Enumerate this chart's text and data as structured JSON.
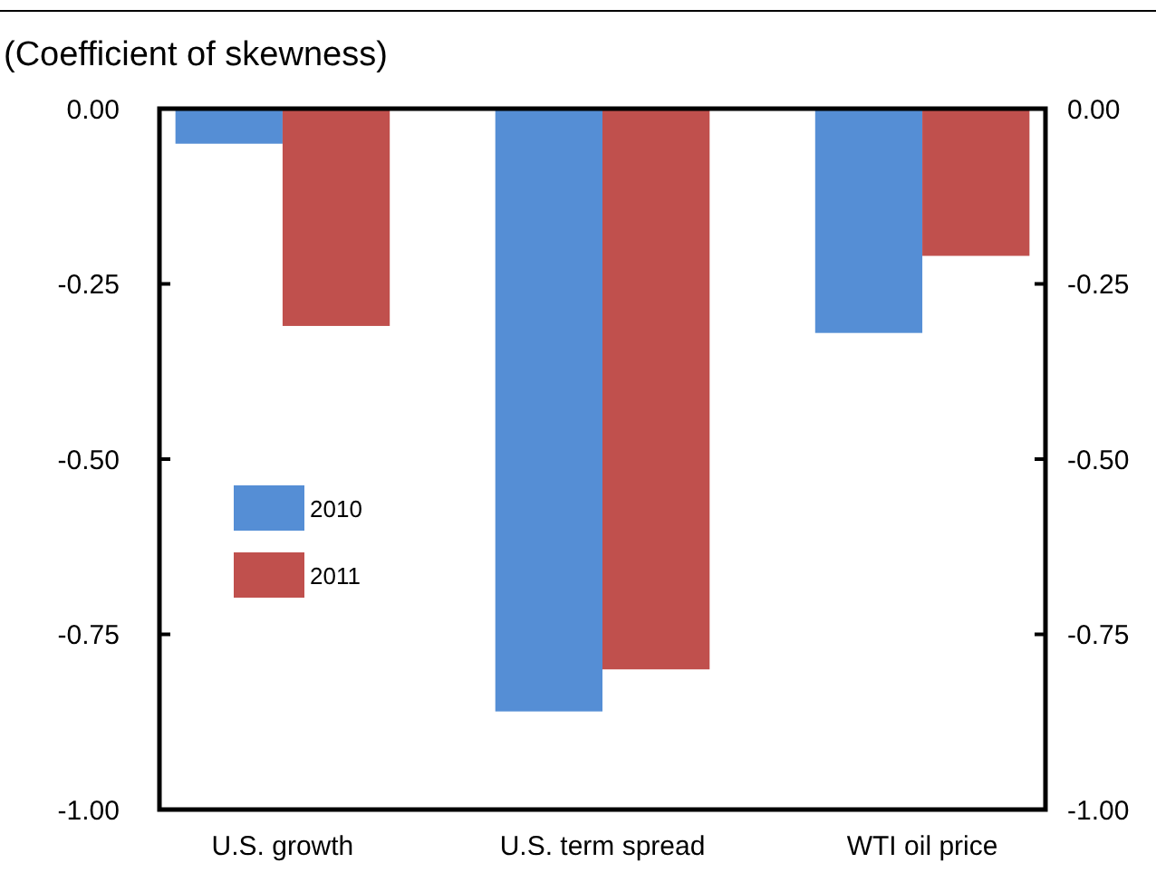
{
  "chart_data": {
    "type": "bar",
    "ylabel": "(Coefficient of skewness)",
    "categories": [
      "U.S. growth",
      "U.S. term spread",
      "WTI oil price"
    ],
    "series": [
      {
        "name": "2010",
        "color": "#558ed5",
        "values": [
          -0.05,
          -0.86,
          -0.32
        ]
      },
      {
        "name": "2011",
        "color": "#c0504d",
        "values": [
          -0.31,
          -0.8,
          -0.21
        ]
      }
    ],
    "ylim": [
      -1,
      0
    ],
    "yticks": [
      {
        "value": -1,
        "label": "-1.00"
      },
      {
        "value": -0.75,
        "label": "-0.75"
      },
      {
        "value": -0.5,
        "label": "-0.50"
      },
      {
        "value": -0.25,
        "label": "-0.25"
      },
      {
        "value": 0,
        "label": "0.00"
      }
    ],
    "y2lim": [
      -1,
      0
    ],
    "y2ticks": [
      {
        "value": -1,
        "label": "-1.00"
      },
      {
        "value": -0.75,
        "label": "-0.75"
      },
      {
        "value": -0.5,
        "label": "-0.50"
      },
      {
        "value": -0.25,
        "label": "-0.25"
      },
      {
        "value": 0,
        "label": "0.00"
      }
    ],
    "legend": "left",
    "grid": false
  }
}
